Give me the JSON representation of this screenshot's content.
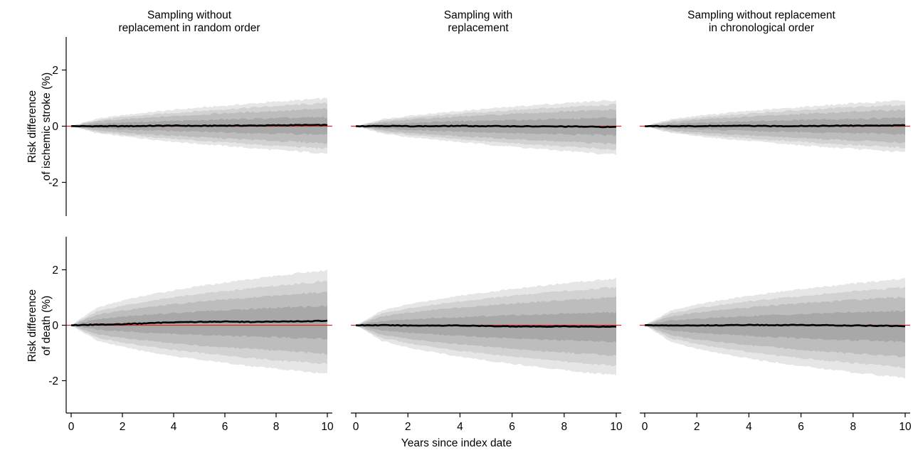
{
  "colors": {
    "band_outer": "#e6e6e6",
    "band_2": "#d2d2d2",
    "band_3": "#bdbdbd",
    "band_inner": "#a8a8a8",
    "reference_line": "#e02a2a",
    "median_line": "#000000"
  },
  "xlabel": "Years since index date",
  "columns": [
    {
      "title_line1": "Sampling without",
      "title_line2": "replacement in random order"
    },
    {
      "title_line1": "Sampling with",
      "title_line2": "replacement"
    },
    {
      "title_line1": "Sampling without replacement",
      "title_line2": "in chronological order"
    }
  ],
  "rows": [
    {
      "ylabel_line1": "Risk difference",
      "ylabel_line2": "of ischemic stroke (%)"
    },
    {
      "ylabel_line1": "Risk difference",
      "ylabel_line2": "of death (%)"
    }
  ],
  "chart_data": [
    {
      "type": "area",
      "title": "Sampling without replacement in random order",
      "xlabel": "",
      "ylabel": "Risk difference of ischemic stroke (%)",
      "xlim": [
        0,
        10
      ],
      "ylim": [
        -3.2,
        3.2
      ],
      "xticks": [
        0,
        2,
        4,
        6,
        8,
        10
      ],
      "yticks": [
        -2,
        0,
        2
      ],
      "show_x_axis": false,
      "x": [
        0,
        1,
        2,
        3,
        4,
        5,
        6,
        7,
        8,
        9,
        10
      ],
      "bands": [
        {
          "lower": [
            0,
            -0.25,
            -0.36,
            -0.46,
            -0.55,
            -0.63,
            -0.7,
            -0.78,
            -0.85,
            -0.91,
            -0.97
          ],
          "upper": [
            0,
            0.27,
            0.39,
            0.49,
            0.58,
            0.66,
            0.73,
            0.8,
            0.87,
            0.93,
            0.99
          ]
        },
        {
          "lower": [
            0,
            -0.21,
            -0.3,
            -0.38,
            -0.45,
            -0.52,
            -0.58,
            -0.64,
            -0.7,
            -0.75,
            -0.8
          ],
          "upper": [
            0,
            0.22,
            0.32,
            0.4,
            0.47,
            0.54,
            0.6,
            0.66,
            0.72,
            0.77,
            0.82
          ]
        },
        {
          "lower": [
            0,
            -0.16,
            -0.23,
            -0.29,
            -0.34,
            -0.39,
            -0.44,
            -0.48,
            -0.53,
            -0.57,
            -0.6
          ],
          "upper": [
            0,
            0.17,
            0.24,
            0.3,
            0.36,
            0.41,
            0.46,
            0.5,
            0.54,
            0.58,
            0.62
          ]
        },
        {
          "lower": [
            0,
            -0.08,
            -0.12,
            -0.15,
            -0.17,
            -0.2,
            -0.22,
            -0.24,
            -0.26,
            -0.28,
            -0.3
          ],
          "upper": [
            0,
            0.09,
            0.13,
            0.16,
            0.19,
            0.21,
            0.24,
            0.26,
            0.28,
            0.3,
            0.32
          ]
        }
      ],
      "median": [
        0,
        0.0,
        0.0,
        0.01,
        0.02,
        0.01,
        0.02,
        0.02,
        0.03,
        0.04,
        0.04
      ]
    },
    {
      "type": "area",
      "title": "Sampling with replacement",
      "xlabel": "",
      "ylabel": "",
      "xlim": [
        0,
        10
      ],
      "ylim": [
        -3.2,
        3.2
      ],
      "xticks": [
        0,
        2,
        4,
        6,
        8,
        10
      ],
      "yticks": [
        -2,
        0,
        2
      ],
      "show_x_axis": false,
      "x": [
        0,
        1,
        2,
        3,
        4,
        5,
        6,
        7,
        8,
        9,
        10
      ],
      "bands": [
        {
          "lower": [
            0,
            -0.26,
            -0.38,
            -0.48,
            -0.57,
            -0.65,
            -0.73,
            -0.81,
            -0.88,
            -0.95,
            -1.02
          ],
          "upper": [
            0,
            0.25,
            0.37,
            0.46,
            0.54,
            0.62,
            0.69,
            0.76,
            0.82,
            0.88,
            0.93
          ]
        },
        {
          "lower": [
            0,
            -0.21,
            -0.31,
            -0.39,
            -0.47,
            -0.54,
            -0.6,
            -0.67,
            -0.73,
            -0.78,
            -0.84
          ],
          "upper": [
            0,
            0.2,
            0.3,
            0.38,
            0.45,
            0.51,
            0.57,
            0.62,
            0.68,
            0.72,
            0.77
          ]
        },
        {
          "lower": [
            0,
            -0.16,
            -0.24,
            -0.3,
            -0.36,
            -0.41,
            -0.46,
            -0.51,
            -0.55,
            -0.6,
            -0.64
          ],
          "upper": [
            0,
            0.15,
            0.23,
            0.29,
            0.34,
            0.39,
            0.43,
            0.48,
            0.52,
            0.55,
            0.59
          ]
        },
        {
          "lower": [
            0,
            -0.09,
            -0.13,
            -0.16,
            -0.19,
            -0.22,
            -0.25,
            -0.27,
            -0.29,
            -0.31,
            -0.33
          ],
          "upper": [
            0,
            0.08,
            0.12,
            0.15,
            0.18,
            0.2,
            0.22,
            0.24,
            0.26,
            0.28,
            0.3
          ]
        }
      ],
      "median": [
        0,
        0.01,
        0.0,
        0.0,
        0.01,
        0.0,
        0.0,
        -0.01,
        -0.01,
        -0.02,
        -0.03
      ]
    },
    {
      "type": "area",
      "title": "Sampling without replacement in chronological order",
      "xlabel": "",
      "ylabel": "",
      "xlim": [
        0,
        10
      ],
      "ylim": [
        -3.2,
        3.2
      ],
      "xticks": [
        0,
        2,
        4,
        6,
        8,
        10
      ],
      "yticks": [
        -2,
        0,
        2
      ],
      "show_x_axis": false,
      "x": [
        0,
        1,
        2,
        3,
        4,
        5,
        6,
        7,
        8,
        9,
        10
      ],
      "bands": [
        {
          "lower": [
            0,
            -0.24,
            -0.35,
            -0.45,
            -0.53,
            -0.61,
            -0.68,
            -0.75,
            -0.81,
            -0.87,
            -0.93
          ],
          "upper": [
            0,
            0.25,
            0.37,
            0.46,
            0.54,
            0.61,
            0.68,
            0.75,
            0.81,
            0.86,
            0.92
          ]
        },
        {
          "lower": [
            0,
            -0.2,
            -0.29,
            -0.37,
            -0.44,
            -0.5,
            -0.56,
            -0.62,
            -0.67,
            -0.72,
            -0.77
          ],
          "upper": [
            0,
            0.2,
            0.3,
            0.38,
            0.45,
            0.51,
            0.57,
            0.62,
            0.68,
            0.72,
            0.77
          ]
        },
        {
          "lower": [
            0,
            -0.15,
            -0.22,
            -0.28,
            -0.33,
            -0.38,
            -0.42,
            -0.47,
            -0.51,
            -0.54,
            -0.58
          ],
          "upper": [
            0,
            0.15,
            0.23,
            0.29,
            0.34,
            0.39,
            0.43,
            0.48,
            0.52,
            0.55,
            0.59
          ]
        },
        {
          "lower": [
            0,
            -0.08,
            -0.11,
            -0.14,
            -0.17,
            -0.19,
            -0.21,
            -0.23,
            -0.25,
            -0.27,
            -0.29
          ],
          "upper": [
            0,
            0.08,
            0.12,
            0.15,
            0.17,
            0.2,
            0.22,
            0.24,
            0.26,
            0.28,
            0.3
          ]
        }
      ],
      "median": [
        0,
        0.0,
        0.0,
        0.01,
        0.01,
        0.0,
        0.01,
        0.01,
        0.02,
        0.02,
        0.03
      ]
    },
    {
      "type": "area",
      "title": "",
      "xlabel": "Years since index date",
      "ylabel": "Risk difference of death (%)",
      "xlim": [
        0,
        10
      ],
      "ylim": [
        -3.2,
        3.2
      ],
      "xticks": [
        0,
        2,
        4,
        6,
        8,
        10
      ],
      "yticks": [
        -2,
        0,
        2
      ],
      "show_x_axis": true,
      "x": [
        0,
        1,
        2,
        3,
        4,
        5,
        6,
        7,
        8,
        9,
        10
      ],
      "bands": [
        {
          "lower": [
            0,
            -0.55,
            -0.78,
            -0.96,
            -1.11,
            -1.24,
            -1.36,
            -1.47,
            -1.57,
            -1.66,
            -1.75
          ],
          "upper": [
            0,
            0.63,
            0.89,
            1.09,
            1.26,
            1.41,
            1.54,
            1.67,
            1.78,
            1.89,
            1.98
          ]
        },
        {
          "lower": [
            0,
            -0.44,
            -0.63,
            -0.77,
            -0.89,
            -0.99,
            -1.09,
            -1.18,
            -1.26,
            -1.33,
            -1.4
          ],
          "upper": [
            0,
            0.5,
            0.71,
            0.87,
            1.01,
            1.13,
            1.23,
            1.33,
            1.43,
            1.51,
            1.59
          ]
        },
        {
          "lower": [
            0,
            -0.32,
            -0.46,
            -0.56,
            -0.65,
            -0.73,
            -0.8,
            -0.86,
            -0.92,
            -0.97,
            -1.03
          ],
          "upper": [
            0,
            0.38,
            0.53,
            0.65,
            0.76,
            0.85,
            0.93,
            1.0,
            1.07,
            1.14,
            1.2
          ]
        },
        {
          "lower": [
            0,
            -0.16,
            -0.22,
            -0.27,
            -0.31,
            -0.35,
            -0.38,
            -0.41,
            -0.44,
            -0.46,
            -0.49
          ],
          "upper": [
            0,
            0.22,
            0.31,
            0.38,
            0.44,
            0.49,
            0.54,
            0.58,
            0.63,
            0.66,
            0.7
          ]
        }
      ],
      "median": [
        0,
        0.02,
        0.04,
        0.07,
        0.11,
        0.12,
        0.13,
        0.12,
        0.13,
        0.14,
        0.16
      ]
    },
    {
      "type": "area",
      "title": "",
      "xlabel": "",
      "ylabel": "",
      "xlim": [
        0,
        10
      ],
      "ylim": [
        -3.2,
        3.2
      ],
      "xticks": [
        0,
        2,
        4,
        6,
        8,
        10
      ],
      "yticks": [
        -2,
        0,
        2
      ],
      "show_x_axis": true,
      "x": [
        0,
        1,
        2,
        3,
        4,
        5,
        6,
        7,
        8,
        9,
        10
      ],
      "bands": [
        {
          "lower": [
            0,
            -0.56,
            -0.8,
            -0.98,
            -1.13,
            -1.27,
            -1.39,
            -1.5,
            -1.61,
            -1.71,
            -1.8
          ],
          "upper": [
            0,
            0.53,
            0.75,
            0.92,
            1.07,
            1.19,
            1.31,
            1.41,
            1.51,
            1.6,
            1.69
          ]
        },
        {
          "lower": [
            0,
            -0.46,
            -0.65,
            -0.8,
            -0.92,
            -1.03,
            -1.13,
            -1.22,
            -1.31,
            -1.39,
            -1.46
          ],
          "upper": [
            0,
            0.43,
            0.61,
            0.75,
            0.86,
            0.97,
            1.06,
            1.15,
            1.23,
            1.3,
            1.37
          ]
        },
        {
          "lower": [
            0,
            -0.34,
            -0.49,
            -0.6,
            -0.69,
            -0.77,
            -0.85,
            -0.92,
            -0.98,
            -1.04,
            -1.1
          ],
          "upper": [
            0,
            0.32,
            0.45,
            0.55,
            0.64,
            0.72,
            0.78,
            0.85,
            0.91,
            0.96,
            1.01
          ]
        },
        {
          "lower": [
            0,
            -0.19,
            -0.27,
            -0.33,
            -0.38,
            -0.43,
            -0.47,
            -0.51,
            -0.54,
            -0.58,
            -0.61
          ],
          "upper": [
            0,
            0.15,
            0.21,
            0.25,
            0.29,
            0.33,
            0.36,
            0.39,
            0.42,
            0.44,
            0.46
          ]
        }
      ],
      "median": [
        0,
        0.0,
        -0.01,
        -0.01,
        -0.01,
        -0.03,
        -0.04,
        -0.05,
        -0.04,
        -0.05,
        -0.05
      ]
    },
    {
      "type": "area",
      "title": "",
      "xlabel": "",
      "ylabel": "",
      "xlim": [
        0,
        10
      ],
      "ylim": [
        -3.2,
        3.2
      ],
      "xticks": [
        0,
        2,
        4,
        6,
        8,
        10
      ],
      "yticks": [
        -2,
        0,
        2
      ],
      "show_x_axis": true,
      "x": [
        0,
        1,
        2,
        3,
        4,
        5,
        6,
        7,
        8,
        9,
        10
      ],
      "bands": [
        {
          "lower": [
            0,
            -0.6,
            -0.85,
            -1.04,
            -1.2,
            -1.34,
            -1.47,
            -1.59,
            -1.7,
            -1.8,
            -1.9
          ],
          "upper": [
            0,
            0.53,
            0.75,
            0.92,
            1.06,
            1.19,
            1.3,
            1.4,
            1.5,
            1.59,
            1.68
          ]
        },
        {
          "lower": [
            0,
            -0.48,
            -0.68,
            -0.83,
            -0.96,
            -1.08,
            -1.18,
            -1.28,
            -1.36,
            -1.45,
            -1.52
          ],
          "upper": [
            0,
            0.43,
            0.61,
            0.75,
            0.86,
            0.96,
            1.05,
            1.14,
            1.22,
            1.29,
            1.36
          ]
        },
        {
          "lower": [
            0,
            -0.36,
            -0.51,
            -0.62,
            -0.72,
            -0.8,
            -0.88,
            -0.95,
            -1.02,
            -1.08,
            -1.14
          ],
          "upper": [
            0,
            0.32,
            0.45,
            0.56,
            0.64,
            0.72,
            0.79,
            0.85,
            0.91,
            0.97,
            1.02
          ]
        },
        {
          "lower": [
            0,
            -0.19,
            -0.27,
            -0.33,
            -0.38,
            -0.43,
            -0.47,
            -0.51,
            -0.54,
            -0.57,
            -0.6
          ],
          "upper": [
            0,
            0.17,
            0.23,
            0.29,
            0.33,
            0.37,
            0.4,
            0.44,
            0.47,
            0.49,
            0.52
          ]
        }
      ],
      "median": [
        0,
        -0.01,
        -0.01,
        0.0,
        0.01,
        0.0,
        0.01,
        0.0,
        -0.01,
        -0.02,
        -0.03
      ]
    }
  ]
}
